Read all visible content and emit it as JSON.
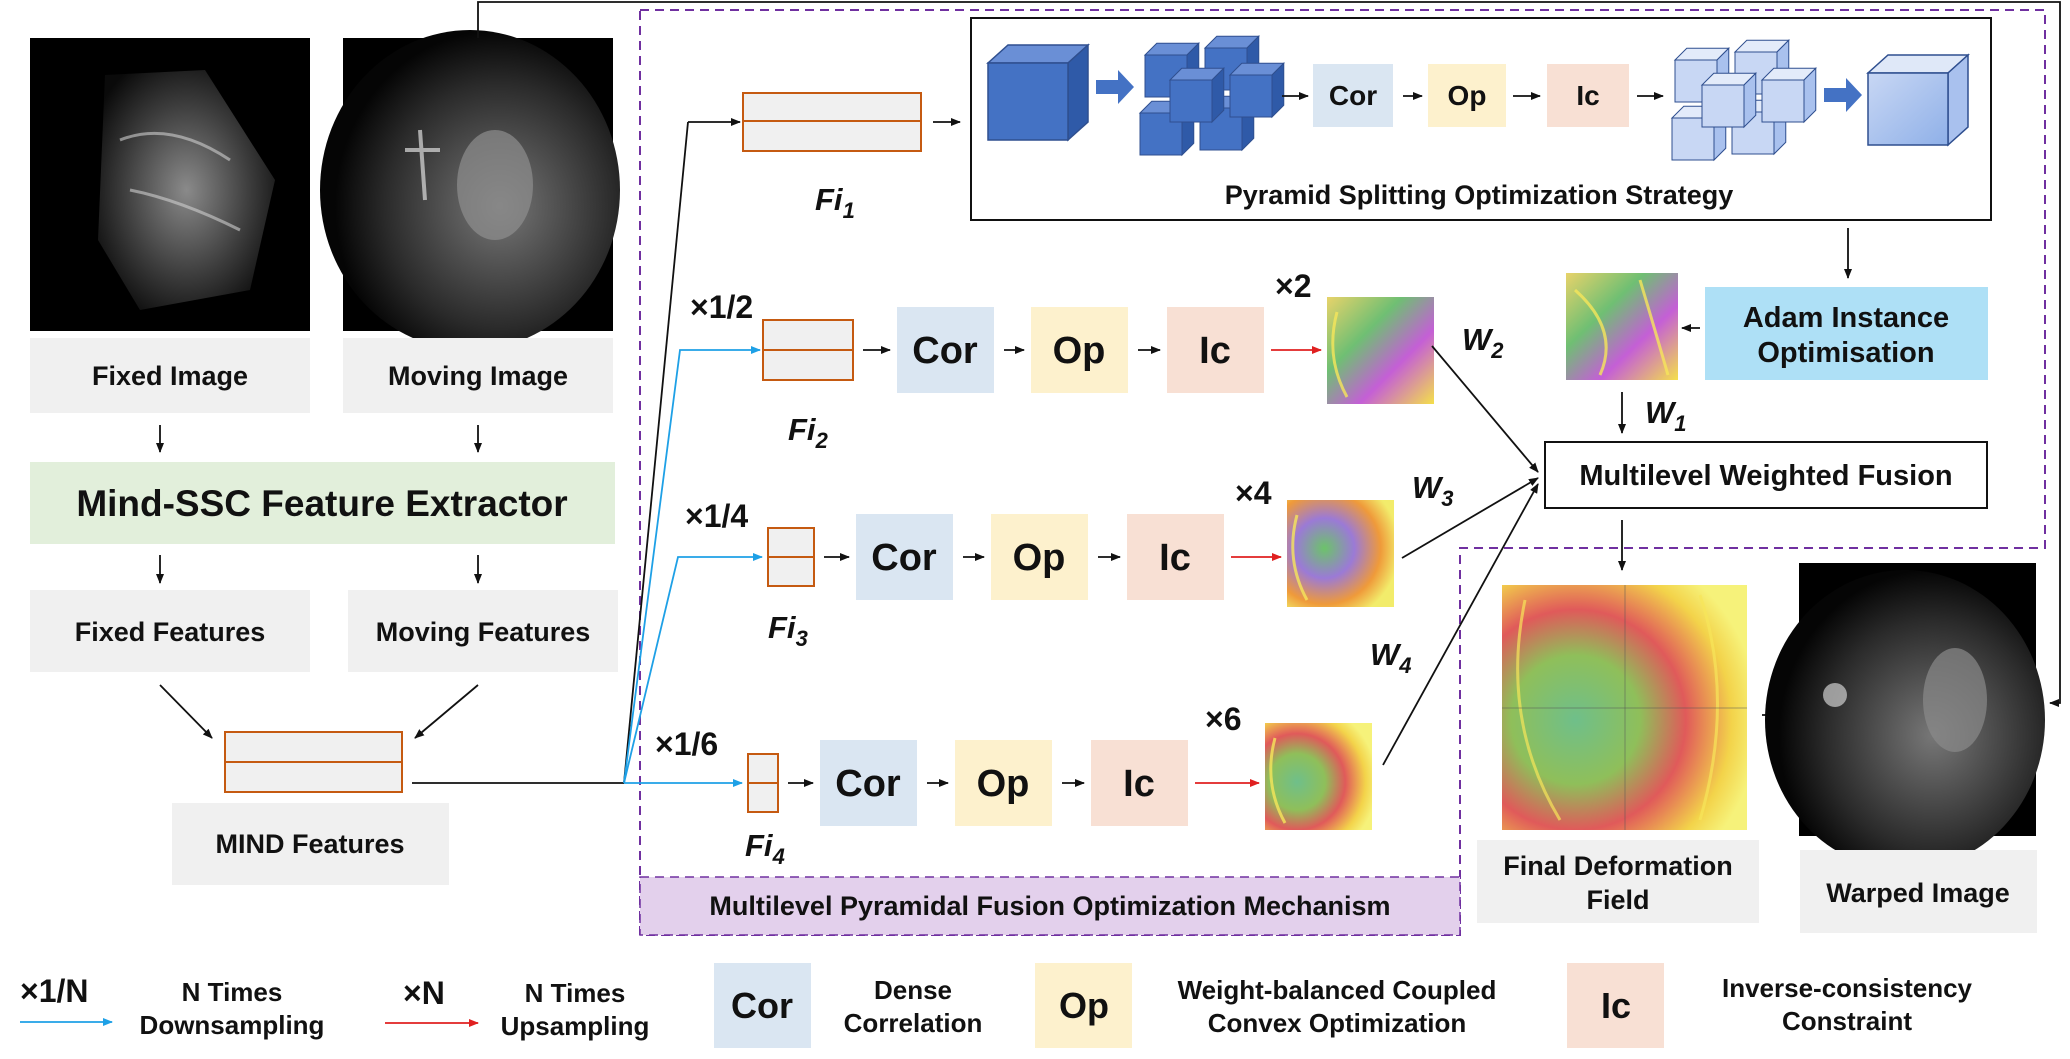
{
  "inputs": {
    "fixed_image_label": "Fixed Image",
    "moving_image_label": "Moving Image"
  },
  "extractor": {
    "label": "Mind-SSC Feature Extractor"
  },
  "features": {
    "fixed": "Fixed Features",
    "moving": "Moving Features",
    "mind": "MIND Features"
  },
  "top_branch": {
    "fi_label": "Fi",
    "fi_sub": "1",
    "strategy_title": "Pyramid Splitting Optimization Strategy",
    "cor": "Cor",
    "op": "Op",
    "ic": "Ic"
  },
  "branches": [
    {
      "scale": "×1/2",
      "fi_label": "Fi",
      "fi_sub": "2",
      "cor": "Cor",
      "op": "Op",
      "ic": "Ic",
      "up": "×2",
      "w_label": "W",
      "w_sub": "2"
    },
    {
      "scale": "×1/4",
      "fi_label": "Fi",
      "fi_sub": "3",
      "cor": "Cor",
      "op": "Op",
      "ic": "Ic",
      "up": "×4",
      "w_label": "W",
      "w_sub": "3"
    },
    {
      "scale": "×1/6",
      "fi_label": "Fi",
      "fi_sub": "4",
      "cor": "Cor",
      "op": "Op",
      "ic": "Ic",
      "up": "×6",
      "w_label": "W",
      "w_sub": "4"
    }
  ],
  "adam": {
    "line1": "Adam Instance",
    "line2": "Optimisation",
    "w_label": "W",
    "w_sub": "1"
  },
  "fusion": {
    "label": "Multilevel Weighted Fusion"
  },
  "mechanism": {
    "label": "Multilevel Pyramidal Fusion Optimization Mechanism"
  },
  "outputs": {
    "deformation_line1": "Final Deformation",
    "deformation_line2": "Field",
    "warped": "Warped Image"
  },
  "legend": {
    "down_symbol": "×1/N",
    "down_line1": "N Times",
    "down_line2": "Downsampling",
    "up_symbol": "×N",
    "up_line1": "N Times",
    "up_line2": "Upsampling",
    "cor": "Cor",
    "cor_line1": "Dense",
    "cor_line2": "Correlation",
    "op": "Op",
    "op_line1": "Weight-balanced Coupled",
    "op_line2": "Convex Optimization",
    "ic": "Ic",
    "ic_line1": "Inverse-consistency",
    "ic_line2": "Constraint"
  },
  "colors": {
    "cor_fill": "#dae6f2",
    "op_fill": "#fdf1cd",
    "ic_fill": "#f8e0d4",
    "label_fill": "#f0f0f0",
    "extractor_fill": "#e2efdb",
    "adam_fill": "#aee0f6",
    "mechanism_fill": "#e3d0ec",
    "dashed_border": "#7030a0",
    "feature_border": "#c55a11",
    "down_arrow": "#1ea0e6",
    "up_arrow": "#e02020",
    "cube_blue": "#4472c4"
  }
}
